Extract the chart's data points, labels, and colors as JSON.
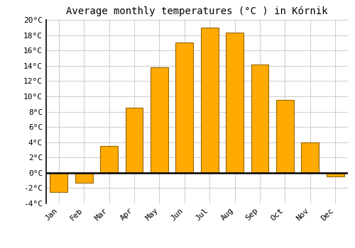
{
  "title": "Average monthly temperatures (°C ) in Kórnik",
  "months": [
    "Jan",
    "Feb",
    "Mar",
    "Apr",
    "May",
    "Jun",
    "Jul",
    "Aug",
    "Sep",
    "Oct",
    "Nov",
    "Dec"
  ],
  "values": [
    -2.5,
    -1.3,
    3.5,
    8.5,
    13.8,
    17.0,
    19.0,
    18.3,
    14.2,
    9.5,
    4.0,
    -0.5
  ],
  "bar_color": "#FFAA00",
  "bar_edge_color": "#996600",
  "background_color": "#ffffff",
  "grid_color": "#cccccc",
  "ylim": [
    -4,
    20
  ],
  "yticks": [
    -4,
    -2,
    0,
    2,
    4,
    6,
    8,
    10,
    12,
    14,
    16,
    18,
    20
  ],
  "title_fontsize": 10,
  "tick_fontsize": 8,
  "font_family": "monospace",
  "bar_width": 0.7
}
